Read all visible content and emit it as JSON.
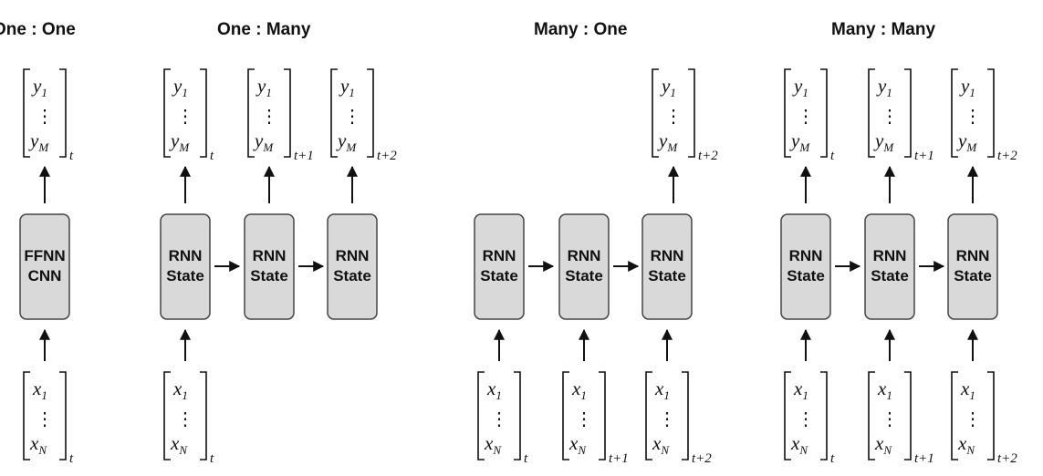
{
  "titles": {
    "one_one": "One : One",
    "one_many": "One : Many",
    "many_one": "Many : One",
    "many_many": "Many : Many"
  },
  "boxes": {
    "ffnn_line1": "FFNN",
    "ffnn_line2": "CNN",
    "rnn_line1": "RNN",
    "rnn_line2": "State"
  },
  "vectors": {
    "output_first": {
      "letter": "y",
      "sub": "1"
    },
    "output_last": {
      "letter": "y",
      "sub": "M"
    },
    "input_first": {
      "letter": "x",
      "sub": "1"
    },
    "input_last": {
      "letter": "x",
      "sub": "N"
    },
    "ellipsis": "⋮"
  },
  "time_subscripts": [
    "t",
    "t+1",
    "t+2"
  ]
}
